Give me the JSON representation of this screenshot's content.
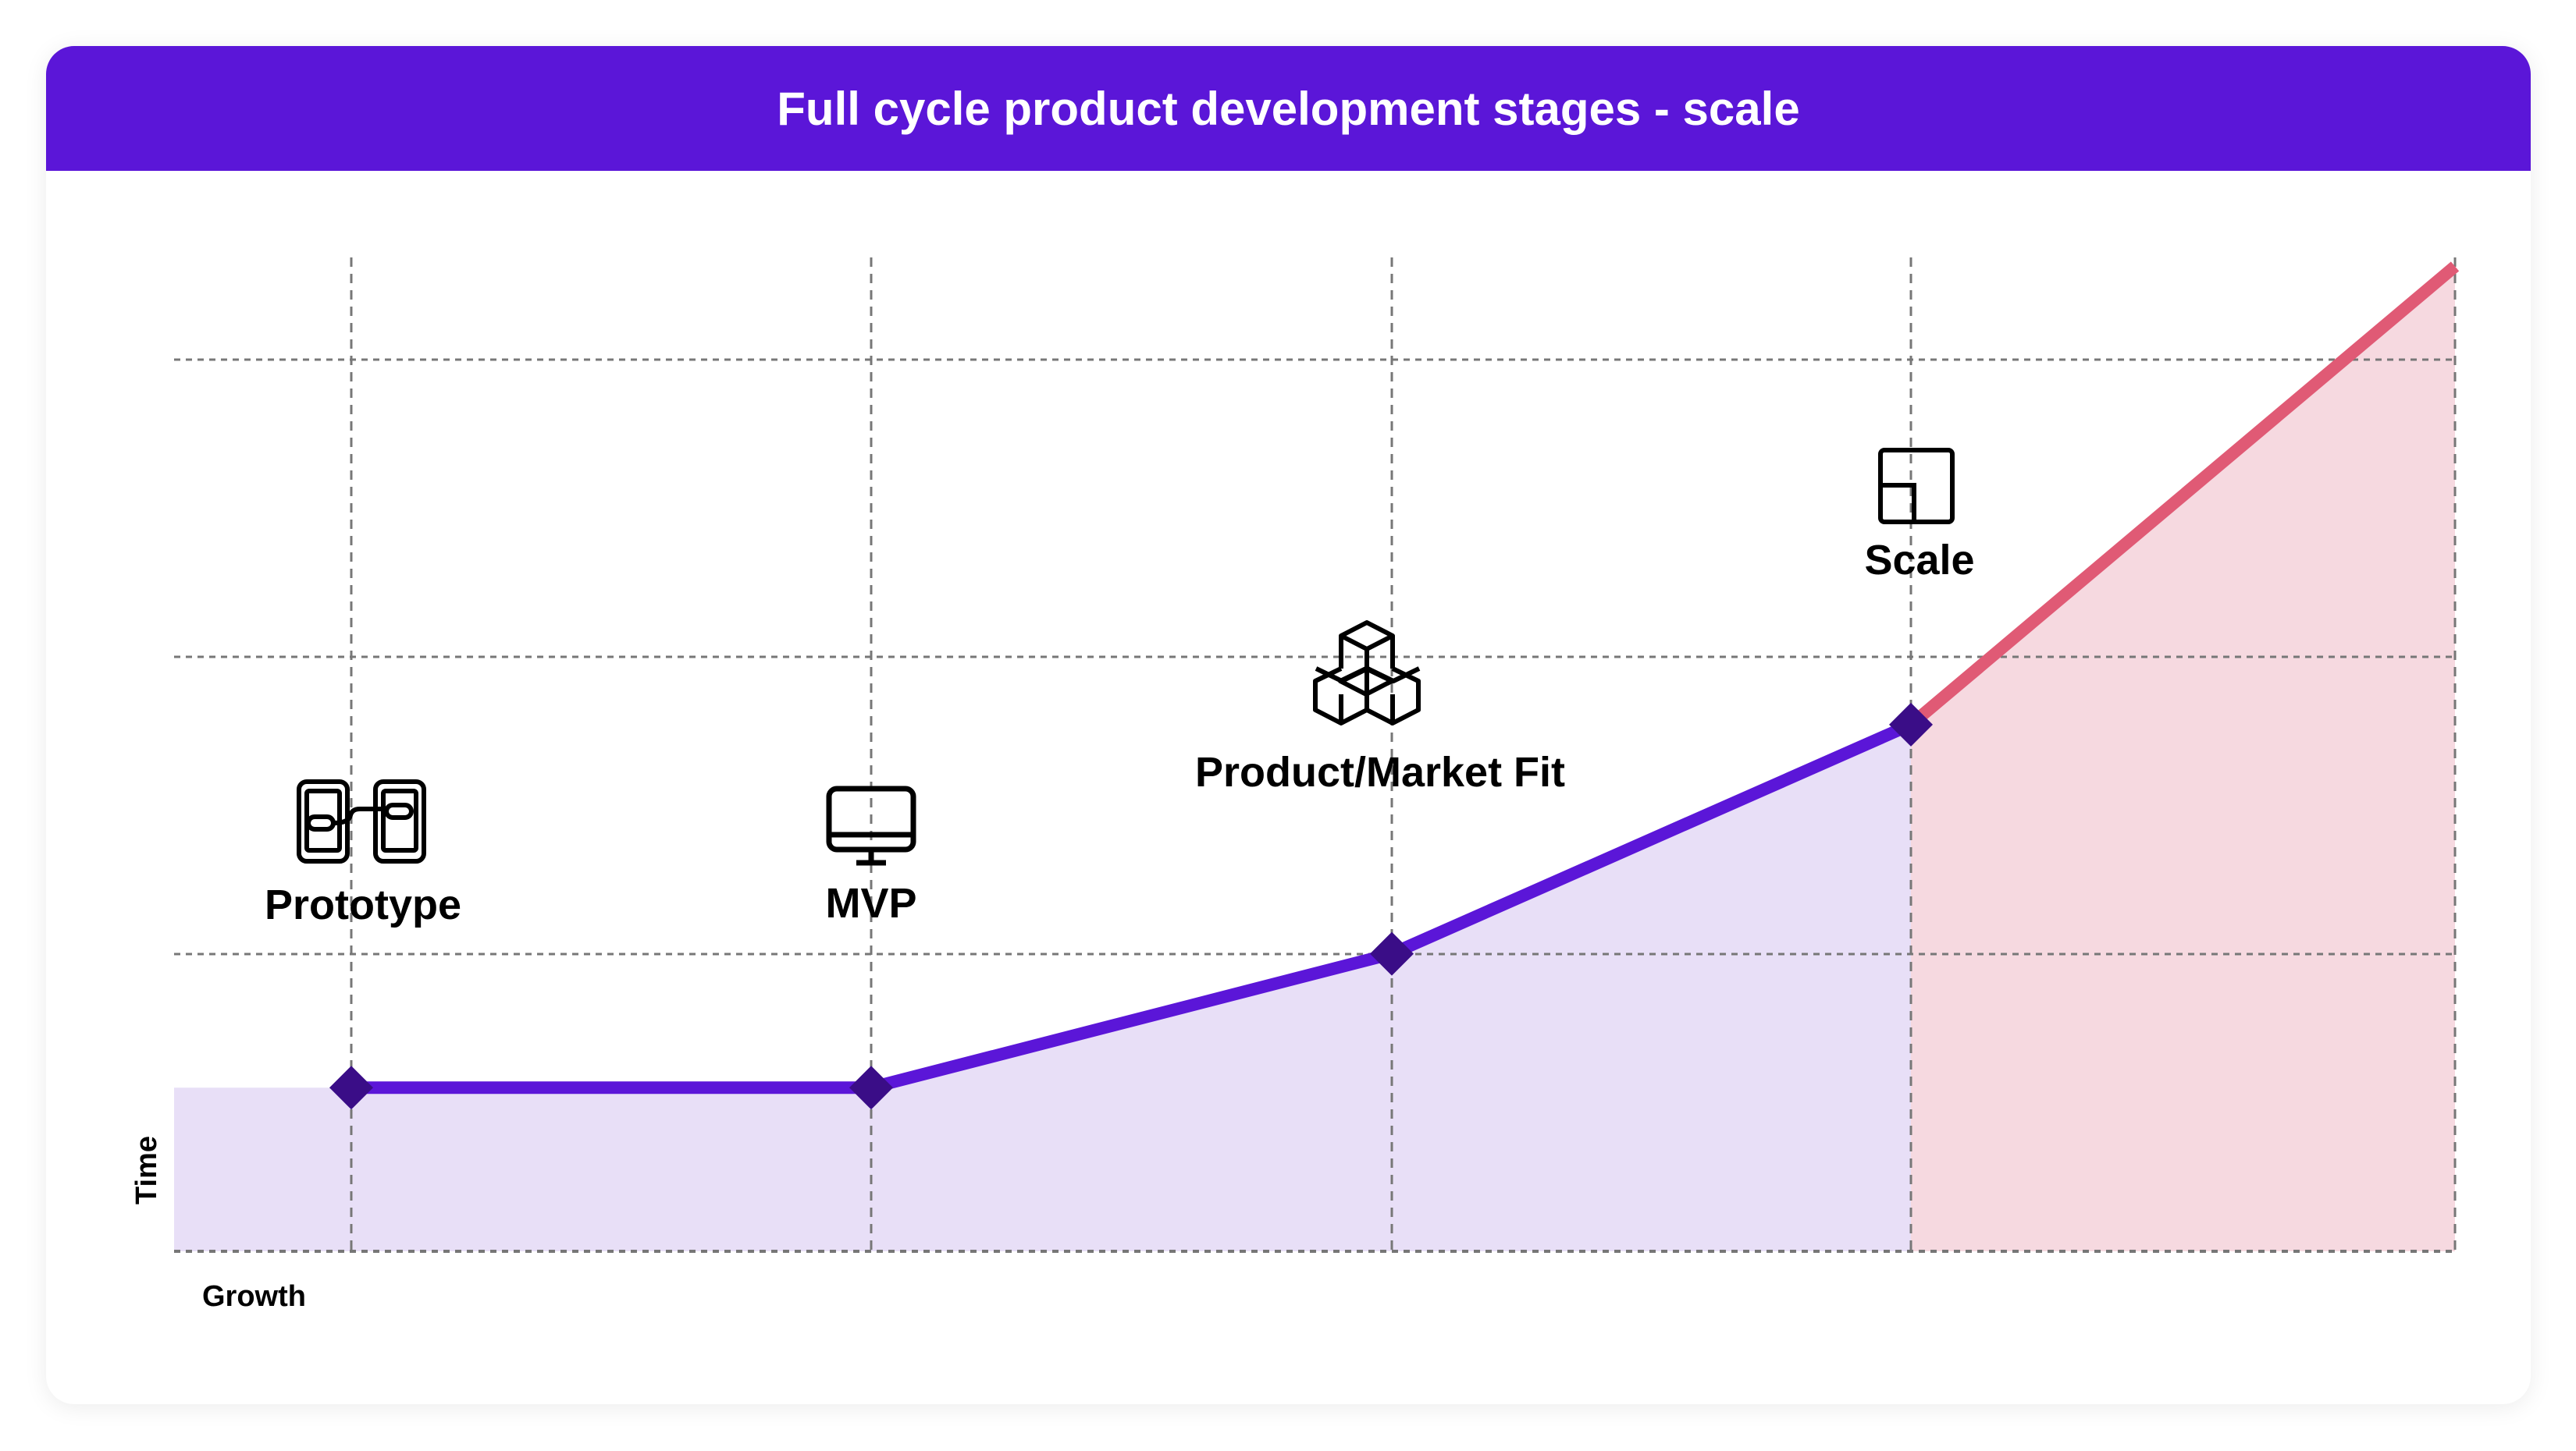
{
  "header": {
    "title": "Full cycle product development stages - scale"
  },
  "chart_data": {
    "type": "line",
    "title": "Full cycle product development stages - scale",
    "xlabel": "Growth",
    "ylabel": "Time",
    "categories": [
      "Prototype",
      "MVP",
      "Product/Market Fit",
      "Scale",
      ""
    ],
    "stages": [
      {
        "label": "Prototype",
        "icon": "linked-phones-icon",
        "x": 0,
        "y": 0.55
      },
      {
        "label": "MVP",
        "icon": "monitor-icon",
        "x": 1,
        "y": 0.55
      },
      {
        "label": "Product/Market Fit",
        "icon": "stacked-cubes-icon",
        "x": 2,
        "y": 1.0
      },
      {
        "label": "Scale",
        "icon": "layout-scale-icon",
        "x": 3,
        "y": 1.77
      }
    ],
    "series": [
      {
        "name": "development",
        "x": [
          0,
          1,
          2,
          3
        ],
        "values": [
          0.55,
          0.55,
          1.0,
          1.77
        ],
        "color": "#5b16d8",
        "fill": "#e8dff7"
      },
      {
        "name": "scale",
        "x": [
          3,
          4.1
        ],
        "values": [
          1.77,
          3.31
        ],
        "color": "#e05a75",
        "fill": "#f6d9e0"
      }
    ],
    "xlim": [
      -0.34,
      4.1
    ],
    "ylim": [
      0,
      3.34
    ],
    "grid": true,
    "marker_color": "#3a0d87"
  }
}
